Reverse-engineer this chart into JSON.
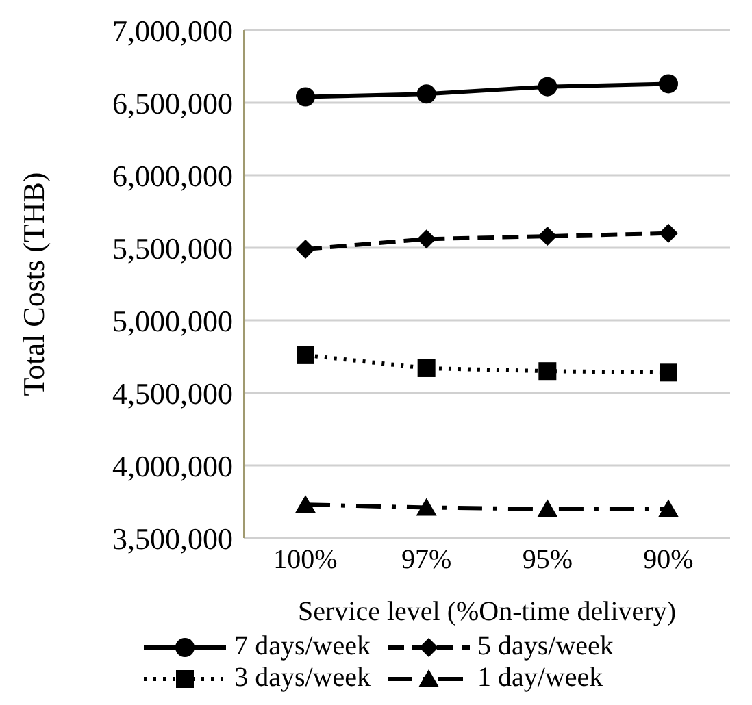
{
  "chart_data": {
    "type": "line",
    "categories": [
      "100%",
      "97%",
      "95%",
      "90%"
    ],
    "xlabel": "Service level (%On-time delivery)",
    "ylabel": "Total Costs (THB)",
    "ylim": [
      3500000,
      7000000
    ],
    "yticks": [
      {
        "value": 3500000,
        "label": "3,500,000"
      },
      {
        "value": 4000000,
        "label": "4,000,000"
      },
      {
        "value": 4500000,
        "label": "4,500,000"
      },
      {
        "value": 5000000,
        "label": "5,000,000"
      },
      {
        "value": 5500000,
        "label": "5,500,000"
      },
      {
        "value": 6000000,
        "label": "6,000,000"
      },
      {
        "value": 6500000,
        "label": "6,500,000"
      },
      {
        "value": 7000000,
        "label": "7,000,000"
      }
    ],
    "grid": "y",
    "legend": "bottom",
    "series": [
      {
        "name": "7 days/week",
        "color": "#000000",
        "marker": "circle",
        "line_style": "solid",
        "values": [
          6540000,
          6560000,
          6610000,
          6630000
        ]
      },
      {
        "name": "5 days/week",
        "color": "#000000",
        "marker": "diamond",
        "line_style": "dashed",
        "values": [
          5490000,
          5560000,
          5580000,
          5600000
        ]
      },
      {
        "name": "3 days/week",
        "color": "#000000",
        "marker": "square",
        "line_style": "dotted",
        "values": [
          4760000,
          4670000,
          4650000,
          4640000
        ]
      },
      {
        "name": "1 day/week",
        "color": "#000000",
        "marker": "triangle",
        "line_style": "dashdot",
        "values": [
          3730000,
          3710000,
          3700000,
          3700000
        ]
      }
    ]
  }
}
